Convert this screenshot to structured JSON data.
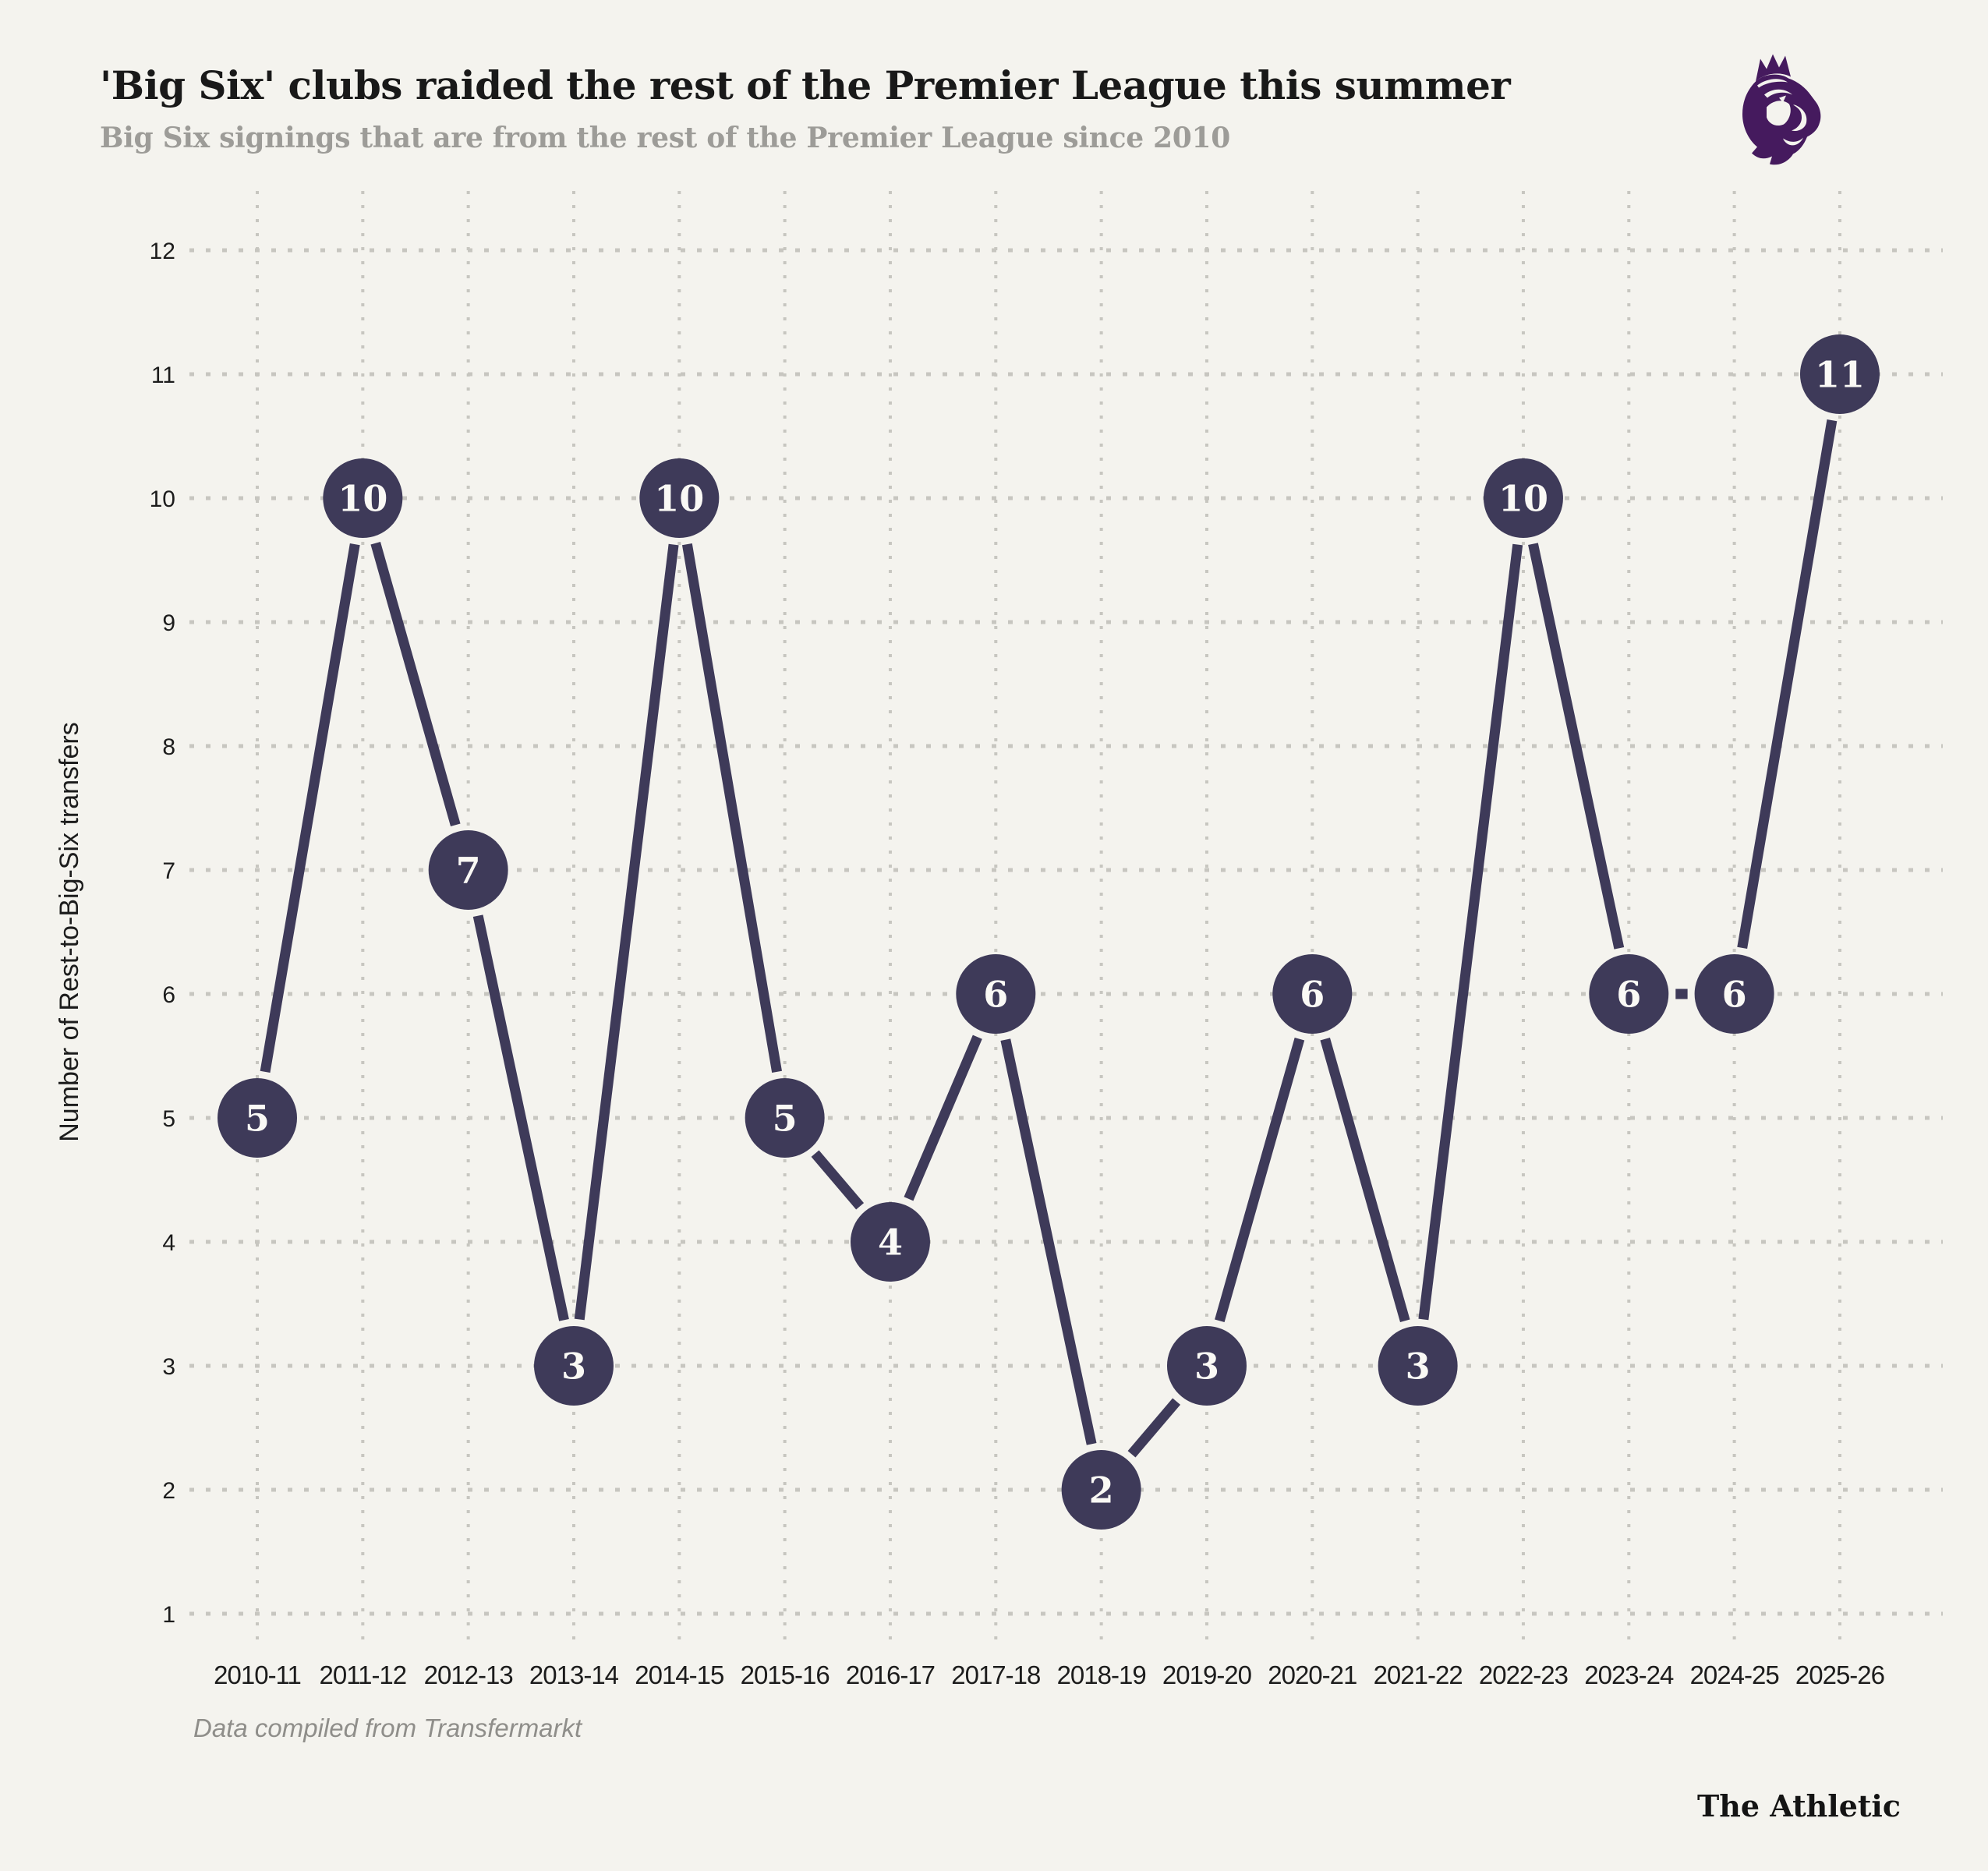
{
  "header": {
    "title": "'Big Six' clubs raided the rest of the Premier League this summer",
    "subtitle": "Big Six signings that are from the rest of the Premier League since 2010"
  },
  "logo": {
    "label": "Premier League"
  },
  "chart_data": {
    "type": "line",
    "title": "'Big Six' clubs raided the rest of the Premier League this summer",
    "subtitle": "Big Six signings that are from the rest of the Premier League since 2010",
    "categories": [
      "2010-11",
      "2011-12",
      "2012-13",
      "2013-14",
      "2014-15",
      "2015-16",
      "2016-17",
      "2017-18",
      "2018-19",
      "2019-20",
      "2020-21",
      "2021-22",
      "2022-23",
      "2023-24",
      "2024-25",
      "2025-26"
    ],
    "values": [
      5,
      10,
      7,
      3,
      10,
      5,
      4,
      6,
      2,
      3,
      6,
      3,
      10,
      6,
      6,
      11
    ],
    "xlabel": "",
    "ylabel": "Number of Rest-to-Big-Six transfers",
    "ylim": [
      1,
      12
    ],
    "yticks": [
      1,
      2,
      3,
      4,
      5,
      6,
      7,
      8,
      9,
      10,
      11,
      12
    ],
    "grid": "dotted-both-axes",
    "legend": "none",
    "point_labels": "value shown inside each marker",
    "colors": {
      "background": "#f4f3ee",
      "marker": "#3e3a59",
      "line": "#3e3a59",
      "marker_text": "#faf9f5",
      "grid": "#c7c6c0",
      "logo_purple": "#451a5e"
    }
  },
  "footer": {
    "source": "Data compiled from Transfermarkt",
    "brand": "The Athletic"
  }
}
